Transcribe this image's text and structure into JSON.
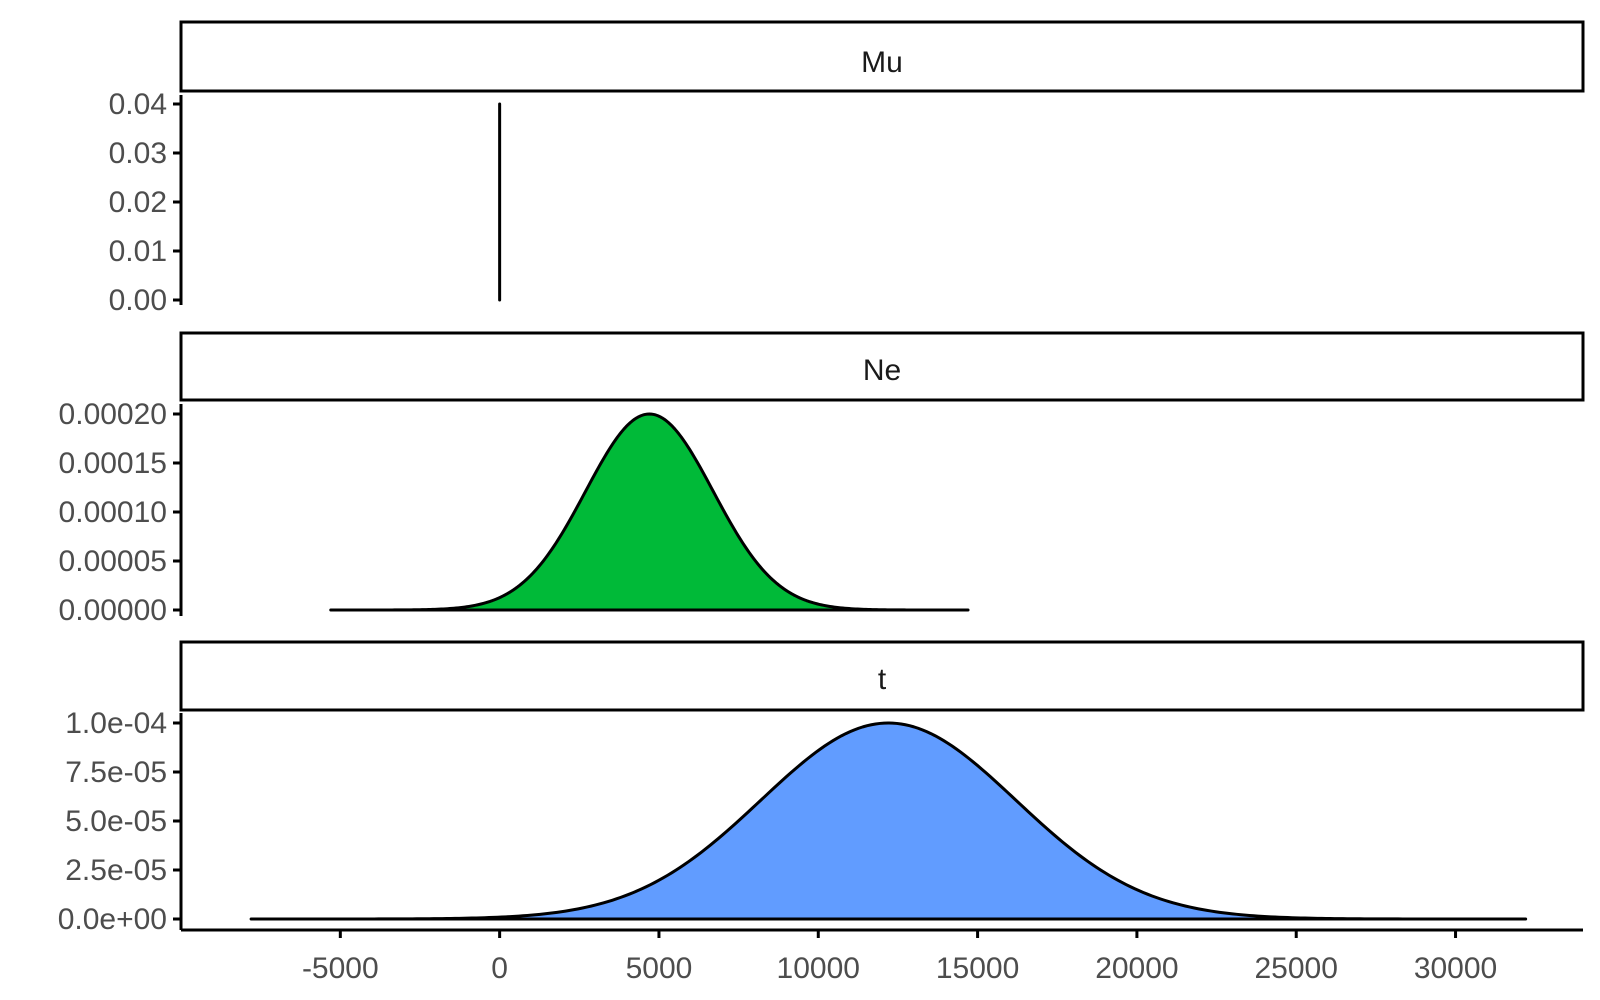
{
  "chart_data": {
    "type": "area",
    "facets": [
      "Mu",
      "Ne",
      "t"
    ],
    "xlim": [
      -10000,
      34000
    ],
    "x_ticks": [
      -5000,
      0,
      5000,
      10000,
      15000,
      20000,
      25000,
      30000
    ],
    "x_tick_labels": [
      "-5000",
      "0",
      "5000",
      "10000",
      "15000",
      "20000",
      "25000",
      "30000"
    ],
    "panels": [
      {
        "facet": "Mu",
        "fill": "#F8766D",
        "ylim": [
          0,
          0.04
        ],
        "y_ticks": [
          0,
          0.01,
          0.02,
          0.03,
          0.04
        ],
        "y_tick_labels": [
          "0.00",
          "0.01",
          "0.02",
          "0.03",
          "0.04"
        ],
        "series": {
          "kind": "normal",
          "mean": 0.0001,
          "sd": 1e-05,
          "x_range": [
            5e-05,
            0.00015
          ],
          "peak": 0.04
        }
      },
      {
        "facet": "Ne",
        "fill": "#00BA38",
        "ylim": [
          0,
          0.0002
        ],
        "y_ticks": [
          0,
          5e-05,
          0.0001,
          0.00015,
          0.0002
        ],
        "y_tick_labels": [
          "0.00000",
          "0.00005",
          "0.00010",
          "0.00015",
          "0.00020"
        ],
        "series": {
          "kind": "normal",
          "mean": 4700,
          "sd": 2000,
          "x_range": [
            -5300,
            14700
          ],
          "peak": 0.0002
        }
      },
      {
        "facet": "t",
        "fill": "#619CFF",
        "ylim": [
          0,
          0.0001
        ],
        "y_ticks": [
          0,
          2.5e-05,
          5e-05,
          7.5e-05,
          0.0001
        ],
        "y_tick_labels": [
          "0.0e+00",
          "2.5e-05",
          "5.0e-05",
          "7.5e-05",
          "1.0e-04"
        ],
        "series": {
          "kind": "normal",
          "mean": 12200,
          "sd": 4000,
          "x_range": [
            -7800,
            32200
          ],
          "peak": 0.0001
        }
      }
    ]
  }
}
